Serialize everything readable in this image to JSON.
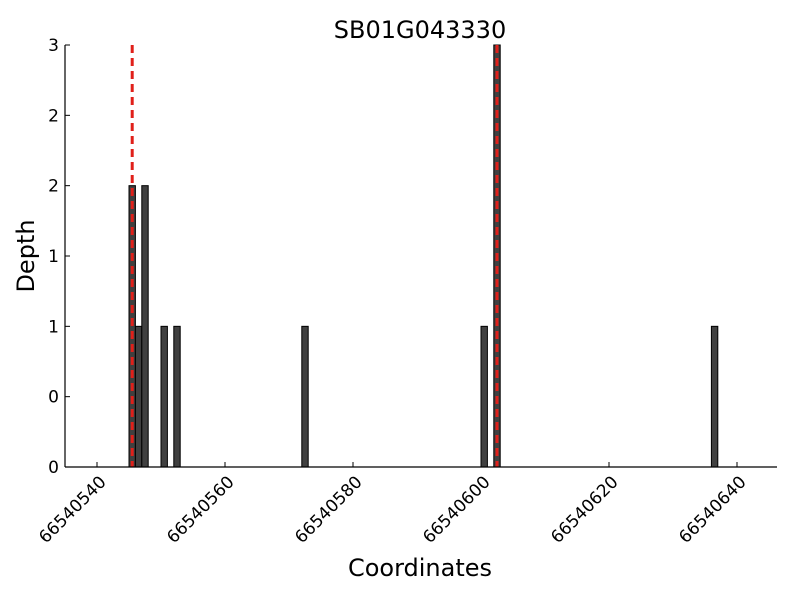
{
  "chart_data": {
    "type": "bar",
    "title": "SB01G043330",
    "x_label": "Coordinates",
    "y_label": "Depth",
    "x": [
      66540545,
      66540546,
      66540547,
      66540550,
      66540552,
      66540572,
      66540600,
      66540602,
      66540636
    ],
    "values": [
      2,
      1,
      2,
      1,
      1,
      1,
      1,
      3,
      1
    ],
    "color": "#404040",
    "xlim": [
      66540535,
      66540646.25
    ],
    "xticks": [
      66540540,
      66540560,
      66540580,
      66540600,
      66540620,
      66540640
    ],
    "ylim": [
      0,
      3
    ],
    "yticks": [
      0,
      {
        "value": 0.5,
        "label": "0"
      },
      1,
      {
        "value": 1.5,
        "label": "1"
      },
      2,
      {
        "value": 2.5,
        "label": "2"
      },
      3
    ],
    "vlines": [
      66540545.5,
      66540602.5
    ],
    "vline_color": "#e0201a"
  }
}
